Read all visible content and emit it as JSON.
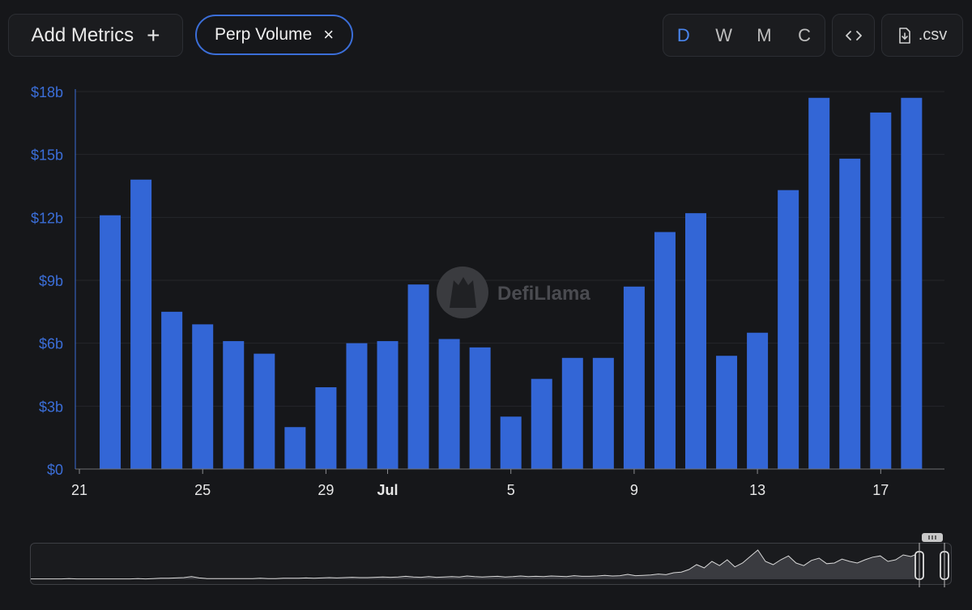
{
  "toolbar": {
    "add_metrics_label": "Add Metrics",
    "add_metrics_plus": "+",
    "selected_metric": "Perp Volume",
    "remove_symbol": "×",
    "periods": [
      "D",
      "W",
      "M",
      "C"
    ],
    "active_period": "D",
    "embed_label": "<>",
    "csv_label": ".csv"
  },
  "watermark": "DefiLlama",
  "colors": {
    "bar": "#3366d6",
    "axis_text": "#3b6ed8",
    "accent": "#3b6ed8",
    "background": "#16171a"
  },
  "chart_data": {
    "type": "bar",
    "title": "",
    "series_name": "Perp Volume",
    "categories": [
      "Jun 22",
      "Jun 23",
      "Jun 24",
      "Jun 25",
      "Jun 26",
      "Jun 27",
      "Jun 28",
      "Jun 29",
      "Jun 30",
      "Jul 1",
      "Jul 2",
      "Jul 3",
      "Jul 4",
      "Jul 5",
      "Jul 6",
      "Jul 7",
      "Jul 8",
      "Jul 9",
      "Jul 10",
      "Jul 11",
      "Jul 12",
      "Jul 13",
      "Jul 14",
      "Jul 15",
      "Jul 16",
      "Jul 17",
      "Jul 18"
    ],
    "values": [
      12.1,
      13.8,
      7.5,
      6.9,
      6.1,
      5.5,
      2.0,
      3.9,
      6.0,
      6.1,
      8.8,
      6.2,
      5.8,
      2.5,
      4.3,
      5.3,
      5.3,
      8.7,
      11.3,
      12.2,
      5.4,
      6.5,
      13.3,
      17.7,
      14.8,
      17.0,
      17.7
    ],
    "unit": "billion USD",
    "ylim": [
      0,
      18
    ],
    "yticks": [
      0,
      3,
      6,
      9,
      12,
      15,
      18
    ],
    "ytick_labels": [
      "$0",
      "$3b",
      "$6b",
      "$9b",
      "$12b",
      "$15b",
      "$18b"
    ],
    "xtick_labels": [
      {
        "index": -1,
        "label": "21",
        "bold": false
      },
      {
        "index": 3,
        "label": "25",
        "bold": false
      },
      {
        "index": 7,
        "label": "29",
        "bold": false
      },
      {
        "index": 9,
        "label": "Jul",
        "bold": true
      },
      {
        "index": 13,
        "label": "5",
        "bold": false
      },
      {
        "index": 17,
        "label": "9",
        "bold": false
      },
      {
        "index": 21,
        "label": "13",
        "bold": false
      },
      {
        "index": 25,
        "label": "17",
        "bold": false
      }
    ],
    "xlabel": "",
    "ylabel": "",
    "grid": true
  },
  "overview": {
    "series": [
      0.01,
      0.01,
      0.01,
      0.01,
      0.01,
      0.02,
      0.01,
      0.01,
      0.01,
      0.01,
      0.01,
      0.01,
      0.01,
      0.01,
      0.02,
      0.01,
      0.02,
      0.03,
      0.03,
      0.04,
      0.05,
      0.08,
      0.04,
      0.02,
      0.02,
      0.02,
      0.02,
      0.02,
      0.02,
      0.02,
      0.03,
      0.02,
      0.02,
      0.03,
      0.03,
      0.03,
      0.04,
      0.03,
      0.04,
      0.05,
      0.04,
      0.05,
      0.06,
      0.05,
      0.05,
      0.06,
      0.07,
      0.06,
      0.07,
      0.09,
      0.07,
      0.06,
      0.08,
      0.06,
      0.07,
      0.08,
      0.07,
      0.1,
      0.08,
      0.07,
      0.08,
      0.09,
      0.07,
      0.08,
      0.1,
      0.08,
      0.09,
      0.08,
      0.1,
      0.09,
      0.08,
      0.11,
      0.09,
      0.09,
      0.1,
      0.12,
      0.1,
      0.11,
      0.15,
      0.11,
      0.12,
      0.13,
      0.16,
      0.14,
      0.2,
      0.22,
      0.3,
      0.45,
      0.35,
      0.55,
      0.42,
      0.6,
      0.38,
      0.5,
      0.7,
      0.9,
      0.55,
      0.45,
      0.6,
      0.72,
      0.5,
      0.42,
      0.58,
      0.65,
      0.48,
      0.5,
      0.62,
      0.55,
      0.5,
      0.6,
      0.68,
      0.72,
      0.55,
      0.6,
      0.75,
      0.7,
      0.8
    ]
  }
}
